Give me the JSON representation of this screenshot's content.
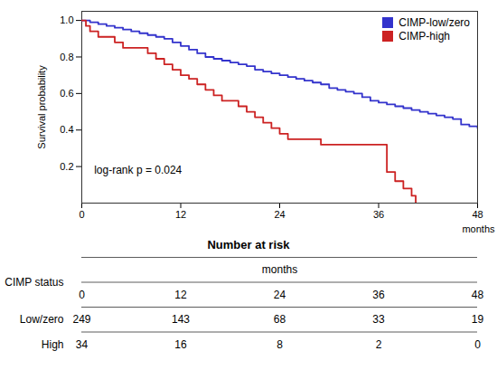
{
  "chart_data": {
    "type": "step",
    "ylabel": "Survival probability",
    "xlabel": "months",
    "xlim": [
      0,
      48
    ],
    "ylim": [
      0,
      1.05
    ],
    "xticks": [
      0,
      12,
      24,
      36,
      48
    ],
    "yticks": [
      0.2,
      0.4,
      0.6,
      0.8,
      {
        "value": 1.0,
        "label": "1.0"
      }
    ],
    "grid": false,
    "legend": "upper right",
    "series": [
      {
        "name": "CIMP-low/zero",
        "color": "#3333cc",
        "x": [
          0,
          1,
          2,
          3,
          4,
          5,
          6,
          7,
          8,
          9,
          10,
          11,
          12,
          13,
          14,
          15,
          16,
          17,
          18,
          19,
          20,
          21,
          22,
          23,
          24,
          25,
          26,
          27,
          28,
          29,
          30,
          31,
          32,
          33,
          34,
          35,
          36,
          37,
          38,
          39,
          40,
          41,
          42,
          43,
          44,
          45,
          46,
          47,
          48
        ],
        "values": [
          1.0,
          0.99,
          0.98,
          0.97,
          0.96,
          0.95,
          0.94,
          0.93,
          0.92,
          0.91,
          0.9,
          0.88,
          0.86,
          0.84,
          0.82,
          0.8,
          0.79,
          0.78,
          0.77,
          0.76,
          0.75,
          0.73,
          0.72,
          0.71,
          0.7,
          0.69,
          0.68,
          0.67,
          0.66,
          0.65,
          0.63,
          0.62,
          0.61,
          0.6,
          0.58,
          0.56,
          0.55,
          0.54,
          0.53,
          0.52,
          0.51,
          0.5,
          0.49,
          0.48,
          0.47,
          0.46,
          0.43,
          0.42,
          0.41
        ]
      },
      {
        "name": "CIMP-high",
        "color": "#cc2222",
        "x": [
          0,
          0.5,
          1,
          2,
          3,
          4,
          5,
          6,
          7,
          8,
          9,
          10,
          11,
          12,
          13,
          14,
          15,
          16,
          17,
          18,
          19,
          20,
          21,
          22,
          23,
          24,
          25,
          26,
          27,
          28,
          29,
          36,
          37,
          38,
          39,
          40,
          40.5
        ],
        "values": [
          1.0,
          0.97,
          0.94,
          0.91,
          0.91,
          0.88,
          0.85,
          0.85,
          0.85,
          0.82,
          0.79,
          0.76,
          0.73,
          0.7,
          0.68,
          0.65,
          0.62,
          0.59,
          0.56,
          0.56,
          0.53,
          0.5,
          0.47,
          0.44,
          0.41,
          0.38,
          0.35,
          0.35,
          0.35,
          0.35,
          0.32,
          0.32,
          0.17,
          0.12,
          0.08,
          0.04,
          0.0
        ]
      }
    ],
    "annotations": [
      {
        "text": "log-rank p = 0.024",
        "x": 1.5,
        "y": 0.16
      }
    ],
    "table": {
      "title": "Number at risk",
      "row_header": "CIMP status",
      "col_header": "months",
      "columns": [
        0,
        12,
        24,
        36,
        48
      ],
      "rows": [
        {
          "name": "Low/zero",
          "values": [
            249,
            143,
            68,
            33,
            19
          ]
        },
        {
          "name": "High",
          "values": [
            34,
            16,
            8,
            2,
            0
          ]
        }
      ]
    }
  }
}
